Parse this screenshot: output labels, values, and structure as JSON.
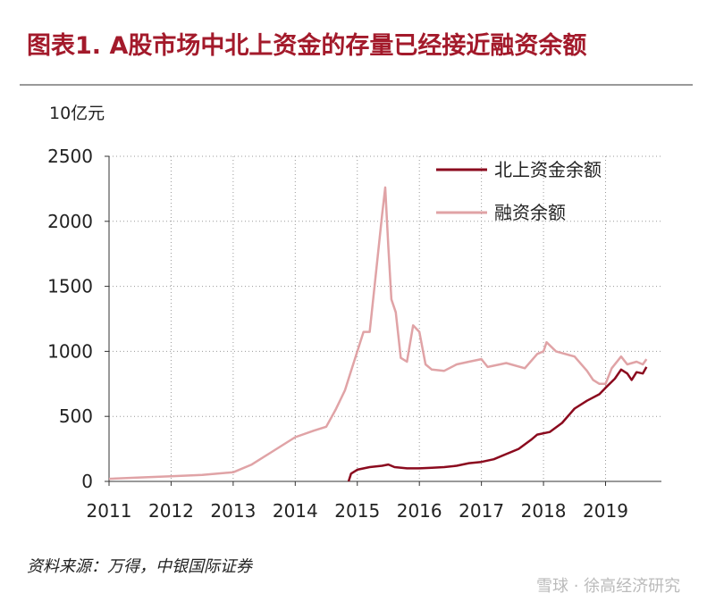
{
  "chart_data": {
    "type": "line",
    "title": "图表1. A股市场中北上资金的存量已经接近融资余额",
    "y_label": "10亿元",
    "source": "资料来源：万得，中银国际证券",
    "watermark": "雪球 · 徐高经济研究",
    "xlim": [
      2011,
      2019.9
    ],
    "xticks": [
      2011,
      2012,
      2013,
      2014,
      2015,
      2016,
      2017,
      2018,
      2019
    ],
    "ylim": [
      0,
      2500
    ],
    "yticks": [
      0,
      500,
      1000,
      1500,
      2000,
      2500
    ],
    "grid": true,
    "legend": "upper right",
    "series": [
      {
        "name": "北上资金余额",
        "color": "#8b0a1e",
        "x": [
          2014.86,
          2014.9,
          2015.0,
          2015.2,
          2015.4,
          2015.5,
          2015.6,
          2015.8,
          2016.0,
          2016.2,
          2016.4,
          2016.6,
          2016.8,
          2017.0,
          2017.2,
          2017.4,
          2017.6,
          2017.8,
          2017.9,
          2018.1,
          2018.3,
          2018.5,
          2018.7,
          2018.9,
          2019.0,
          2019.15,
          2019.25,
          2019.35,
          2019.42,
          2019.5,
          2019.6,
          2019.66
        ],
        "values": [
          0,
          60,
          90,
          110,
          120,
          130,
          110,
          100,
          100,
          105,
          110,
          120,
          140,
          150,
          170,
          210,
          250,
          320,
          360,
          380,
          450,
          560,
          620,
          670,
          720,
          790,
          860,
          830,
          780,
          840,
          830,
          880
        ]
      },
      {
        "name": "融资余额",
        "color": "#e0a3a6",
        "x": [
          2011.0,
          2011.5,
          2012.0,
          2012.5,
          2013.0,
          2013.3,
          2013.6,
          2014.0,
          2014.3,
          2014.5,
          2014.65,
          2014.8,
          2014.9,
          2015.0,
          2015.1,
          2015.2,
          2015.3,
          2015.4,
          2015.45,
          2015.5,
          2015.55,
          2015.62,
          2015.7,
          2015.8,
          2015.9,
          2016.0,
          2016.1,
          2016.2,
          2016.4,
          2016.6,
          2016.8,
          2017.0,
          2017.1,
          2017.4,
          2017.7,
          2017.9,
          2018.0,
          2018.05,
          2018.2,
          2018.5,
          2018.7,
          2018.8,
          2018.9,
          2019.0,
          2019.1,
          2019.25,
          2019.35,
          2019.5,
          2019.6,
          2019.66
        ],
        "values": [
          20,
          30,
          40,
          50,
          70,
          130,
          220,
          340,
          390,
          420,
          550,
          700,
          850,
          1000,
          1150,
          1150,
          1600,
          2050,
          2260,
          1800,
          1400,
          1300,
          950,
          920,
          1200,
          1150,
          900,
          860,
          850,
          900,
          920,
          940,
          880,
          910,
          870,
          980,
          1000,
          1070,
          1000,
          960,
          850,
          780,
          750,
          750,
          870,
          960,
          900,
          920,
          900,
          940
        ]
      }
    ]
  }
}
